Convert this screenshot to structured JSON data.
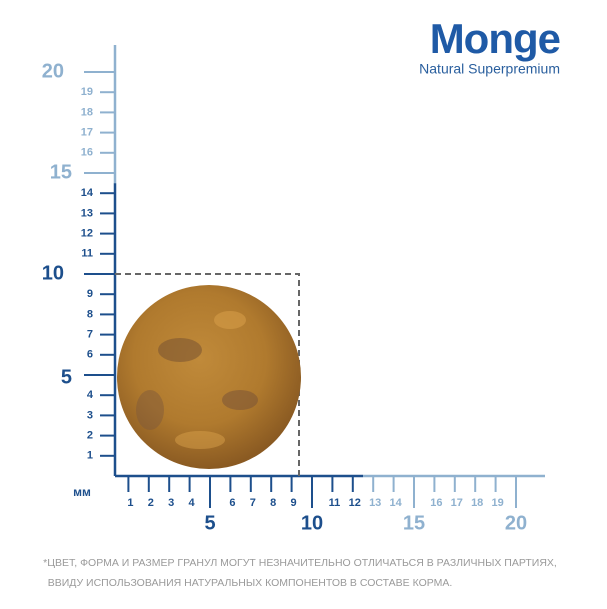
{
  "logo": {
    "brand": "Monge",
    "tagline": "Natural Superpremium"
  },
  "ruler": {
    "unit": "мм",
    "y_ticks_near": [
      1,
      2,
      3,
      4,
      5,
      6,
      7,
      8,
      9,
      10,
      11,
      12,
      13,
      14
    ],
    "y_ticks_far": [
      15,
      16,
      17,
      18,
      19,
      20
    ],
    "x_ticks_near": [
      1,
      2,
      3,
      4,
      5,
      6,
      7,
      8,
      9,
      10,
      11,
      12
    ],
    "x_ticks_far": [
      13,
      14,
      15,
      16,
      17,
      18,
      19,
      20
    ]
  },
  "footnote": [
    "*ЦВЕТ, ФОРМА И РАЗМЕР ГРАНУЛ МОГУТ НЕЗНАЧИТЕЛЬНО ОТЛИЧАТЬСЯ В РАЗЛИЧНЫХ ПАРТИЯХ,",
    "ВВИДУ ИСПОЛЬЗОВАНИЯ НАТУРАЛЬНЫХ КОМПОНЕНТОВ В СОСТАВЕ КОРМА."
  ]
}
